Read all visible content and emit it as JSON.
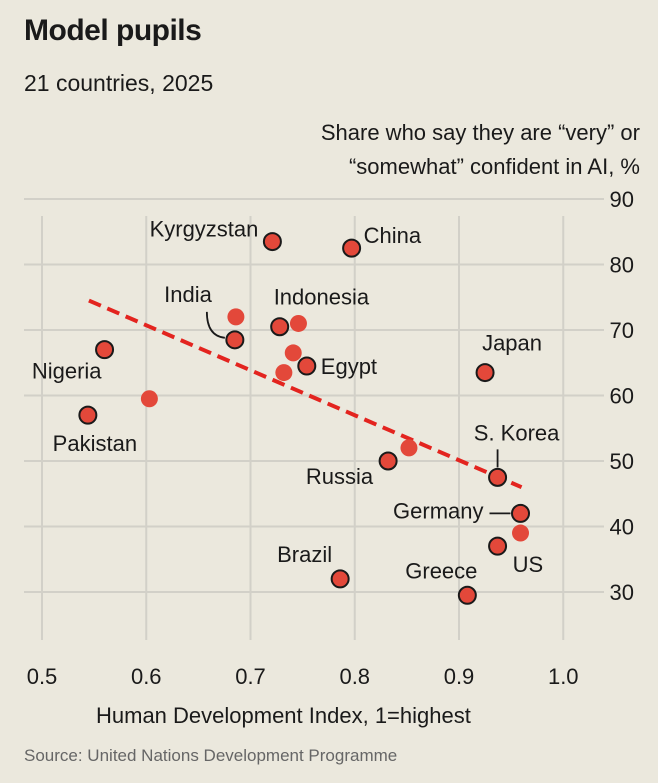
{
  "header": {
    "title": "Model pupils",
    "subtitle": "21 countries, 2025"
  },
  "footer": {
    "source": "Source: United Nations Development Programme"
  },
  "colors": {
    "background": "#ebe8dd",
    "grid": "#d2d0c8",
    "dot": "#e3483a",
    "trend": "#e3241f",
    "text": "#1a1a1a"
  },
  "chart_data": {
    "type": "scatter",
    "title": "Model pupils",
    "subtitle": "21 countries, 2025",
    "xlabel": "Human Development Index, 1=highest",
    "ylabel_line1": "Share who say they are “very” or",
    "ylabel_line2": "“somewhat” confident in AI, %",
    "xlim": [
      0.48,
      1.05
    ],
    "ylim": [
      23,
      93
    ],
    "xticks": [
      0.5,
      0.6,
      0.7,
      0.8,
      0.9,
      1.0
    ],
    "xtick_labels": [
      "0.5",
      "0.6",
      "0.7",
      "0.8",
      "0.9",
      "1.0"
    ],
    "yticks": [
      30,
      40,
      50,
      60,
      70,
      80,
      90
    ],
    "ytick_labels": [
      "30",
      "40",
      "50",
      "60",
      "70",
      "80",
      "90"
    ],
    "grid": true,
    "trendline": {
      "x": [
        0.545,
        0.96
      ],
      "y": [
        74.5,
        46
      ]
    },
    "points": [
      {
        "name": "Kyrgyzstan",
        "x": 0.721,
        "y": 83.5,
        "labeled": true
      },
      {
        "name": "China",
        "x": 0.797,
        "y": 82.5,
        "labeled": true
      },
      {
        "name": "India",
        "x": 0.685,
        "y": 68.5,
        "labeled": true
      },
      {
        "name": "Indonesia",
        "x": 0.728,
        "y": 70.5,
        "labeled": true
      },
      {
        "name": "Nigeria",
        "x": 0.56,
        "y": 67,
        "labeled": true
      },
      {
        "name": "Egypt",
        "x": 0.754,
        "y": 64.5,
        "labeled": true
      },
      {
        "name": "Japan",
        "x": 0.925,
        "y": 63.5,
        "labeled": true
      },
      {
        "name": "Pakistan",
        "x": 0.544,
        "y": 57,
        "labeled": true
      },
      {
        "name": "S. Korea",
        "x": 0.937,
        "y": 47.5,
        "labeled": true
      },
      {
        "name": "Russia",
        "x": 0.832,
        "y": 50,
        "labeled": true
      },
      {
        "name": "Germany",
        "x": 0.959,
        "y": 42,
        "labeled": true
      },
      {
        "name": "US",
        "x": 0.937,
        "y": 37,
        "labeled": true
      },
      {
        "name": "Brazil",
        "x": 0.786,
        "y": 32,
        "labeled": true
      },
      {
        "name": "Greece",
        "x": 0.908,
        "y": 29.5,
        "labeled": true
      },
      {
        "name": "",
        "x": 0.686,
        "y": 72,
        "labeled": false
      },
      {
        "name": "",
        "x": 0.746,
        "y": 71,
        "labeled": false
      },
      {
        "name": "",
        "x": 0.741,
        "y": 66.5,
        "labeled": false
      },
      {
        "name": "",
        "x": 0.732,
        "y": 63.5,
        "labeled": false
      },
      {
        "name": "",
        "x": 0.603,
        "y": 59.5,
        "labeled": false
      },
      {
        "name": "",
        "x": 0.852,
        "y": 52,
        "labeled": false
      },
      {
        "name": "",
        "x": 0.959,
        "y": 39,
        "labeled": false
      }
    ]
  }
}
